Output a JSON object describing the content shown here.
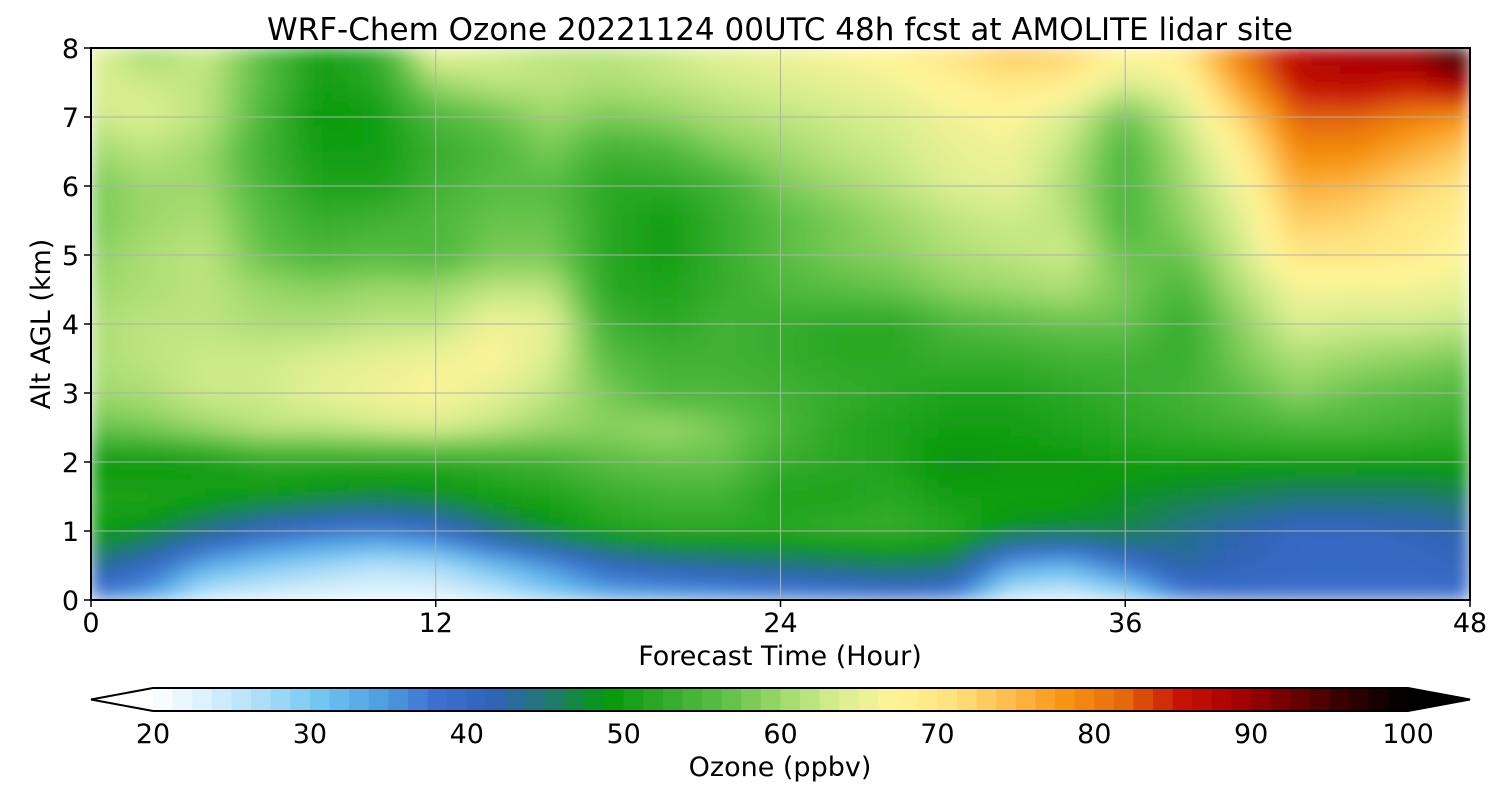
{
  "chart_data": {
    "type": "heatmap",
    "title": "WRF-Chem Ozone  20221124 00UTC 48h fcst at AMOLITE lidar site",
    "xlabel": "Forecast Time (Hour)",
    "ylabel": "Alt AGL (km)",
    "xlim": [
      0,
      48
    ],
    "ylim": [
      0,
      8
    ],
    "x_ticks": [
      "0",
      "12",
      "24",
      "36",
      "48"
    ],
    "y_ticks": [
      "0",
      "1",
      "2",
      "3",
      "4",
      "5",
      "6",
      "7",
      "8"
    ],
    "grid": true,
    "x": [
      0,
      2,
      4,
      6,
      8,
      10,
      12,
      14,
      16,
      18,
      20,
      22,
      24,
      26,
      28,
      30,
      32,
      34,
      36,
      38,
      40,
      42,
      44,
      46,
      48
    ],
    "y": [
      0,
      0.5,
      1,
      1.5,
      2,
      2.5,
      3,
      3.5,
      4,
      4.5,
      5,
      5.5,
      6,
      6.5,
      7,
      7.5,
      8
    ],
    "z": [
      [
        36,
        33,
        24,
        23,
        22,
        22,
        22,
        24,
        28,
        32,
        33,
        34,
        35,
        36,
        37,
        36,
        24,
        23,
        26,
        36,
        38,
        38,
        38,
        38,
        38
      ],
      [
        44,
        40,
        33,
        30,
        28,
        26,
        27,
        31,
        35,
        40,
        42,
        43,
        44,
        45,
        46,
        45,
        34,
        32,
        38,
        43,
        41,
        40,
        40,
        40,
        41
      ],
      [
        50,
        48,
        44,
        40,
        38,
        37,
        39,
        44,
        48,
        51,
        52,
        52,
        52,
        53,
        53,
        52,
        48,
        47,
        47,
        44,
        42,
        40,
        40,
        41,
        42
      ],
      [
        51,
        51,
        50,
        49,
        48,
        47,
        48,
        50,
        51,
        53,
        54,
        54,
        51,
        51,
        52,
        50,
        50,
        50,
        48,
        47,
        46,
        45,
        45,
        45,
        46
      ],
      [
        49,
        49,
        50,
        52,
        52,
        52,
        52,
        53,
        54,
        56,
        57,
        57,
        53,
        52,
        51,
        48,
        49,
        49,
        50,
        50,
        50,
        50,
        50,
        50,
        50
      ],
      [
        57,
        58,
        60,
        62,
        62,
        63,
        64,
        62,
        60,
        59,
        60,
        58,
        55,
        52,
        51,
        50,
        50,
        51,
        52,
        53,
        54,
        55,
        55,
        54,
        53
      ],
      [
        60,
        61,
        63,
        63,
        65,
        66,
        67,
        65,
        62,
        58,
        55,
        55,
        54,
        53,
        52,
        51,
        51,
        52,
        53,
        54,
        56,
        59,
        57,
        56,
        55
      ],
      [
        61,
        62,
        63,
        63,
        64,
        65,
        66,
        67,
        64,
        56,
        54,
        54,
        53,
        52,
        52,
        53,
        53,
        54,
        54,
        53,
        58,
        61,
        60,
        59,
        58
      ],
      [
        61,
        62,
        62,
        61,
        61,
        62,
        62,
        66,
        65,
        54,
        52,
        54,
        53,
        52,
        52,
        55,
        56,
        57,
        57,
        53,
        59,
        64,
        63,
        63,
        62
      ],
      [
        60,
        61,
        62,
        60,
        59,
        60,
        60,
        62,
        62,
        52,
        51,
        53,
        55,
        56,
        57,
        59,
        60,
        61,
        58,
        55,
        61,
        66,
        66,
        66,
        65
      ],
      [
        59,
        61,
        62,
        57,
        55,
        56,
        55,
        58,
        58,
        52,
        50,
        53,
        56,
        58,
        59,
        61,
        62,
        63,
        57,
        57,
        63,
        70,
        70,
        69,
        67
      ],
      [
        58,
        60,
        61,
        56,
        53,
        54,
        55,
        57,
        57,
        52,
        50,
        53,
        56,
        58,
        60,
        62,
        63,
        62,
        55,
        59,
        64,
        73,
        72,
        70,
        68
      ],
      [
        58,
        60,
        60,
        55,
        51,
        51,
        54,
        56,
        56,
        52,
        52,
        54,
        58,
        60,
        62,
        64,
        65,
        61,
        55,
        60,
        66,
        76,
        75,
        72,
        70
      ],
      [
        60,
        62,
        60,
        54,
        50,
        50,
        53,
        55,
        58,
        54,
        55,
        58,
        60,
        62,
        63,
        65,
        66,
        62,
        55,
        61,
        68,
        79,
        79,
        76,
        73
      ],
      [
        63,
        64,
        62,
        55,
        49,
        50,
        55,
        57,
        60,
        58,
        59,
        61,
        62,
        63,
        64,
        66,
        67,
        64,
        57,
        63,
        72,
        82,
        82,
        80,
        78
      ],
      [
        64,
        63,
        62,
        56,
        50,
        52,
        60,
        62,
        62,
        61,
        62,
        63,
        64,
        65,
        66,
        68,
        70,
        69,
        64,
        66,
        77,
        86,
        87,
        86,
        90
      ],
      [
        65,
        60,
        63,
        56,
        50,
        53,
        66,
        64,
        62,
        62,
        63,
        65,
        66,
        67,
        68,
        71,
        74,
        73,
        68,
        70,
        81,
        88,
        90,
        91,
        99
      ]
    ],
    "colorbar": {
      "label": "Ozone  (ppbv)",
      "min": 20,
      "max": 100,
      "ticks": [
        "20",
        "30",
        "40",
        "50",
        "60",
        "70",
        "80",
        "90",
        "100"
      ],
      "extend": "both",
      "colors": [
        "#ffffff",
        "#d6f0fc",
        "#a8dcf6",
        "#6ec3f2",
        "#4f9fe0",
        "#3c6fcf",
        "#2f63b4",
        "#1e7a6a",
        "#079a0a",
        "#33ab2b",
        "#5cbf45",
        "#9dd86b",
        "#d7ee8f",
        "#fff598",
        "#ffe27e",
        "#fdbd4e",
        "#f79412",
        "#e46a0c",
        "#c81306",
        "#a80000",
        "#6a0000",
        "#2e0000",
        "#000000"
      ]
    }
  }
}
